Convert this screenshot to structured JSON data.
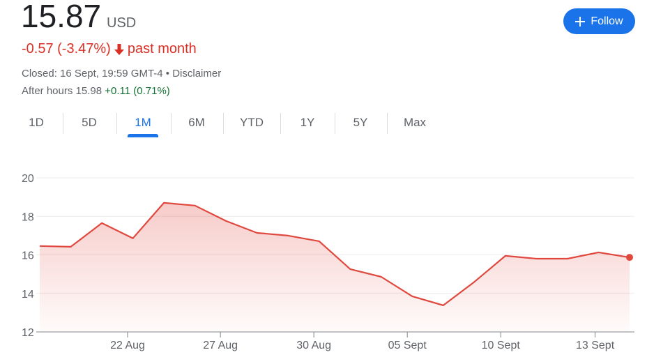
{
  "header": {
    "price": "15.87",
    "currency": "USD",
    "change": "-0.57 (-3.47%)",
    "period": "past month",
    "closed": "Closed: 16 Sept, 19:59 GMT-4 • Disclaimer",
    "after_hours": "After hours 15.98",
    "after_hours_change": "+0.11 (0.71%)",
    "follow_button": "Follow"
  },
  "tabs": [
    "1D",
    "5D",
    "1M",
    "6M",
    "YTD",
    "1Y",
    "5Y",
    "Max"
  ],
  "active_tab": 2,
  "chart_data": {
    "type": "line",
    "color": "#e0483e",
    "x": [
      0,
      1,
      2,
      3,
      4,
      5,
      6,
      7,
      8,
      9,
      10,
      11,
      12,
      13,
      14,
      15,
      16,
      17,
      18,
      19
    ],
    "values": [
      16.46,
      16.42,
      17.65,
      16.86,
      18.7,
      18.56,
      17.76,
      17.14,
      17.0,
      16.71,
      15.26,
      14.86,
      13.85,
      13.38,
      14.6,
      15.95,
      15.8,
      15.8,
      16.13,
      15.87
    ],
    "xlim": [
      0,
      19
    ],
    "ylim": [
      12,
      20
    ],
    "yticks": [
      12,
      14,
      16,
      18,
      20
    ],
    "xticks": [
      {
        "value": 2.83,
        "label": "22 Aug"
      },
      {
        "value": 5.82,
        "label": "27 Aug"
      },
      {
        "value": 8.83,
        "label": "30 Aug"
      },
      {
        "value": 11.84,
        "label": "05 Sept"
      },
      {
        "value": 14.85,
        "label": "10 Sept"
      },
      {
        "value": 17.89,
        "label": "13 Sept"
      }
    ],
    "grid": true
  }
}
